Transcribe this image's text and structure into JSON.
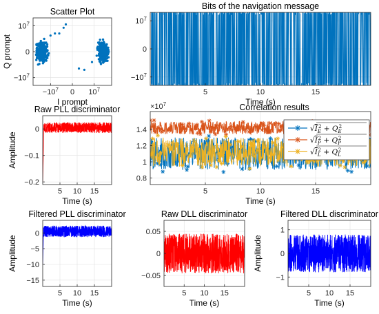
{
  "colors": {
    "blue": "#0000FF",
    "red": "#FF0000",
    "mblue": "#0072BD",
    "orange": "#D95319",
    "yellow": "#EDB120"
  },
  "chart_data": [
    {
      "id": "scatter",
      "type": "scatter",
      "title": "Scatter Plot",
      "xlabel": "I prompt",
      "ylabel": "Q prompt",
      "xlim": [
        -18000000.0,
        18000000.0
      ],
      "ylim": [
        -13000000.0,
        13000000.0
      ],
      "xticks": [
        {
          "v": -10000000.0,
          "t": "−10",
          "e": "7"
        },
        {
          "v": 0,
          "t": "0"
        },
        {
          "v": 10000000.0,
          "t": "10",
          "e": "7"
        }
      ],
      "yticks": [
        {
          "v": -10000000.0,
          "t": "−10",
          "e": "7"
        },
        {
          "v": 0,
          "t": "0"
        },
        {
          "v": 10000000.0,
          "t": "10",
          "e": "7"
        }
      ],
      "clusters": [
        {
          "x": -14000000.0,
          "y": 0
        },
        {
          "x": 14000000.0,
          "y": 0
        }
      ],
      "outliers": [
        [
          -11500000.0,
          2800000.0
        ],
        [
          -10000000.0,
          6200000.0
        ],
        [
          -8000000.0,
          7000000.0
        ],
        [
          -6000000.0,
          7000000.0
        ],
        [
          -4000000.0,
          9200000.0
        ],
        [
          -3000000.0,
          10500000.0
        ],
        [
          -12000000.0,
          3500000.0
        ],
        [
          3000000.0,
          -6500000.0
        ],
        [
          5500000.0,
          -7000000.0
        ],
        [
          9000000.0,
          -4000000.0
        ]
      ],
      "color": "#0072BD",
      "grid": true
    },
    {
      "id": "bits",
      "type": "line",
      "title": "Bits of the navigation message",
      "xlabel": "Time (s)",
      "ylabel": "",
      "xlim": [
        0,
        20
      ],
      "ylim": [
        -13000000.0,
        13000000.0
      ],
      "xticks": [
        {
          "v": 5,
          "t": "5"
        },
        {
          "v": 10,
          "t": "10"
        },
        {
          "v": 15,
          "t": "15"
        }
      ],
      "yticks": [
        {
          "v": -10000000.0,
          "t": "−10",
          "e": "7"
        },
        {
          "v": 0,
          "t": "0"
        },
        {
          "v": 10000000.0,
          "t": "10",
          "e": "7"
        }
      ],
      "series": [
        {
          "signal": "bipolar",
          "level": 14000000.0,
          "noise": 2000000.0,
          "color": "#0072BD"
        }
      ],
      "grid": true
    },
    {
      "id": "rawpll",
      "type": "line",
      "title": "Raw PLL discriminator",
      "xlabel": "Time (s)",
      "ylabel": "Amplitude",
      "xlim": [
        0,
        20
      ],
      "ylim": [
        -0.21,
        0.05
      ],
      "xticks": [
        {
          "v": 5,
          "t": "5"
        },
        {
          "v": 10,
          "t": "10"
        },
        {
          "v": 15,
          "t": "15"
        }
      ],
      "yticks": [
        {
          "v": -0.2,
          "t": "−0.2"
        },
        {
          "v": -0.1,
          "t": "−0.1"
        },
        {
          "v": 0,
          "t": "0"
        }
      ],
      "series": [
        {
          "signal": "noise",
          "center": 0.005,
          "amp": 0.02,
          "spike": [
            -0.2,
            0.3
          ],
          "color": "#FF0000"
        }
      ],
      "grid": true
    },
    {
      "id": "corr",
      "type": "line",
      "title": "Correlation results",
      "xlabel": "Time (s)",
      "ylabel": "",
      "xlim": [
        0,
        20
      ],
      "ylim": [
        7200000.0,
        16200000.0
      ],
      "axis_exponent": "7",
      "xticks": [
        {
          "v": 5,
          "t": "5"
        },
        {
          "v": 10,
          "t": "10"
        },
        {
          "v": 15,
          "t": "15"
        }
      ],
      "yticks": [
        {
          "v": 8000000.0,
          "t": "0.8"
        },
        {
          "v": 10000000.0,
          "t": "1"
        },
        {
          "v": 12000000.0,
          "t": "1.2"
        },
        {
          "v": 14000000.0,
          "t": "1.4"
        }
      ],
      "legend_position": "top-right",
      "series": [
        {
          "name_lhs": "√",
          "name_main": "I",
          "name_sub1": "E",
          "name_mid": "+ Q",
          "name_sub2": "E",
          "center": 11000000.0,
          "amp": 2000000.0,
          "color": "#0072BD"
        },
        {
          "name_lhs": "√",
          "name_main": "I",
          "name_sub1": "P",
          "name_mid": "+ Q",
          "name_sub2": "P",
          "center": 14200000.0,
          "amp": 800000.0,
          "color": "#D95319"
        },
        {
          "name_lhs": "√",
          "name_main": "I",
          "name_sub1": "L",
          "name_mid": "+ Q",
          "name_sub2": "L",
          "center": 11200000.0,
          "amp": 1800000.0,
          "color": "#EDB120"
        }
      ],
      "grid": true
    },
    {
      "id": "filtpll",
      "type": "line",
      "title": "Filtered PLL discriminator",
      "xlabel": "Time (s)",
      "ylabel": "Amplitude",
      "xlim": [
        0,
        20
      ],
      "ylim": [
        -17,
        4
      ],
      "xticks": [
        {
          "v": 5,
          "t": "5"
        },
        {
          "v": 10,
          "t": "10"
        },
        {
          "v": 15,
          "t": "15"
        }
      ],
      "yticks": [
        {
          "v": -15,
          "t": "−15"
        },
        {
          "v": -10,
          "t": "−10"
        },
        {
          "v": -5,
          "t": "−5"
        },
        {
          "v": 0,
          "t": "0"
        }
      ],
      "series": [
        {
          "signal": "noise",
          "center": 0.5,
          "amp": 1.8,
          "spike": [
            -10,
            0.2
          ],
          "color": "#0000FF"
        }
      ],
      "grid": true
    },
    {
      "id": "rawdll",
      "type": "line",
      "title": "Raw DLL discriminator",
      "xlabel": "Time (s)",
      "ylabel": "",
      "xlim": [
        0,
        20
      ],
      "ylim": [
        -0.075,
        0.075
      ],
      "xticks": [
        {
          "v": 5,
          "t": "5"
        },
        {
          "v": 10,
          "t": "10"
        },
        {
          "v": 15,
          "t": "15"
        }
      ],
      "yticks": [
        {
          "v": -0.05,
          "t": "−0.05"
        },
        {
          "v": 0,
          "t": "0"
        },
        {
          "v": 0.05,
          "t": "0.05"
        }
      ],
      "series": [
        {
          "signal": "noise",
          "center": 0,
          "amp": 0.045,
          "color": "#FF0000"
        }
      ],
      "grid": true
    },
    {
      "id": "filtdll",
      "type": "line",
      "title": "Filtered DLL discriminator",
      "xlabel": "Time (s)",
      "ylabel": "Amplitude",
      "xlim": [
        0,
        20
      ],
      "ylim": [
        -1.4,
        1.4
      ],
      "xticks": [
        {
          "v": 5,
          "t": "5"
        },
        {
          "v": 10,
          "t": "10"
        },
        {
          "v": 15,
          "t": "15"
        }
      ],
      "yticks": [
        {
          "v": -1,
          "t": "−1"
        },
        {
          "v": 0,
          "t": "0"
        },
        {
          "v": 1,
          "t": "1"
        }
      ],
      "series": [
        {
          "signal": "noise",
          "center": 0,
          "amp": 0.8,
          "color": "#0000FF"
        }
      ],
      "grid": true
    }
  ]
}
